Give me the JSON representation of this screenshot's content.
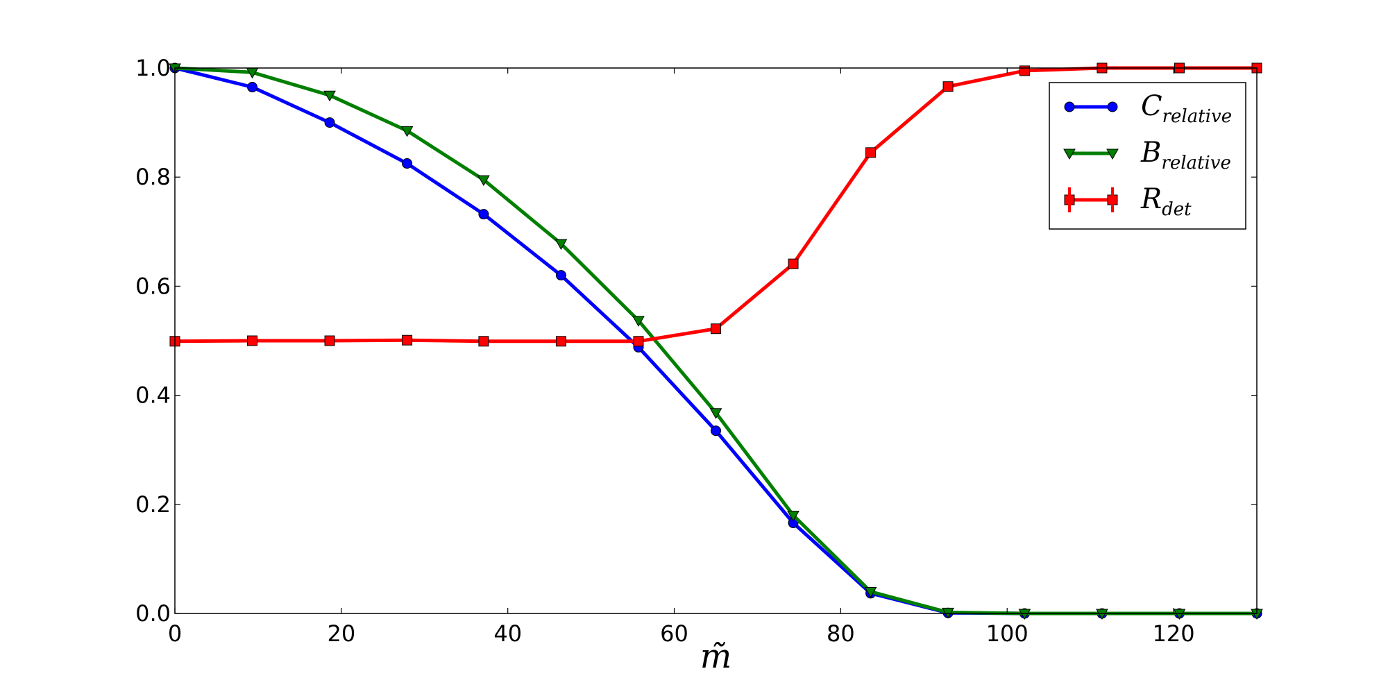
{
  "chart_data": {
    "type": "line",
    "xlabel": "m̃",
    "ylabel": "",
    "xlim": [
      0,
      130
    ],
    "ylim": [
      0.0,
      1.0
    ],
    "x_ticks": [
      0,
      20,
      40,
      60,
      80,
      100,
      120
    ],
    "x_tick_labels": [
      "0",
      "20",
      "40",
      "60",
      "80",
      "100",
      "120"
    ],
    "y_ticks": [
      0.0,
      0.2,
      0.4,
      0.6,
      0.8,
      1.0
    ],
    "y_tick_labels": [
      "0.0",
      "0.2",
      "0.4",
      "0.6",
      "0.8",
      "1.0"
    ],
    "grid": false,
    "legend_position": "top-right",
    "x": [
      0,
      9.3,
      18.6,
      27.9,
      37.1,
      46.4,
      55.7,
      65.0,
      74.3,
      83.6,
      92.9,
      102.1,
      111.4,
      120.7,
      130.0
    ],
    "series": [
      {
        "name": "C",
        "subscript": "relative",
        "color": "#0000ff",
        "marker": "circle",
        "values": [
          1.0,
          0.965,
          0.9,
          0.825,
          0.732,
          0.62,
          0.488,
          0.335,
          0.166,
          0.037,
          0.001,
          0.0,
          0.0,
          0.0,
          0.0
        ]
      },
      {
        "name": "B",
        "subscript": "relative",
        "color": "#007f00",
        "marker": "triangle-down",
        "values": [
          1.0,
          0.992,
          0.95,
          0.885,
          0.795,
          0.678,
          0.537,
          0.368,
          0.18,
          0.04,
          0.002,
          0.0,
          0.0,
          0.0,
          0.0
        ]
      },
      {
        "name": "R",
        "subscript": "det",
        "color": "#ff0000",
        "marker": "square",
        "errorbars": true,
        "values": [
          0.499,
          0.5,
          0.5,
          0.501,
          0.499,
          0.499,
          0.499,
          0.522,
          0.641,
          0.845,
          0.966,
          0.995,
          1.0,
          1.0,
          1.0
        ]
      }
    ]
  }
}
